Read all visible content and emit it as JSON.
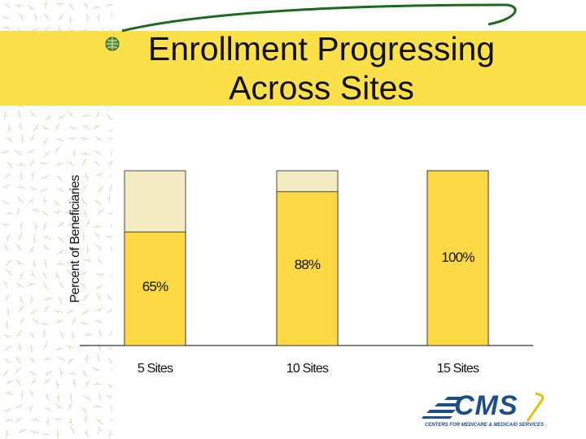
{
  "slide": {
    "title_line1": "Enrollment Progressing",
    "title_line2": "Across Sites"
  },
  "logo": {
    "name": "CMS",
    "tagline": "CENTERS FOR MEDICARE & MEDICAID SERVICES"
  },
  "colors": {
    "title_band": "#fbe049",
    "bar_fill": "#fcd844",
    "bar_remainder": "#f4ebc3",
    "swoosh": "#1c6b1c",
    "logo_blue": "#1f4c8a"
  },
  "chart_data": {
    "type": "bar",
    "stacked": true,
    "categories": [
      "5 Sites",
      "10 Sites",
      "15 Sites"
    ],
    "values": [
      65,
      88,
      100
    ],
    "data_labels": [
      "65%",
      "88%",
      "100%"
    ],
    "ylabel": "Percent of Beneficiaries",
    "xlabel": "",
    "ylim": [
      0,
      100
    ],
    "grid": false,
    "legend": "none"
  }
}
